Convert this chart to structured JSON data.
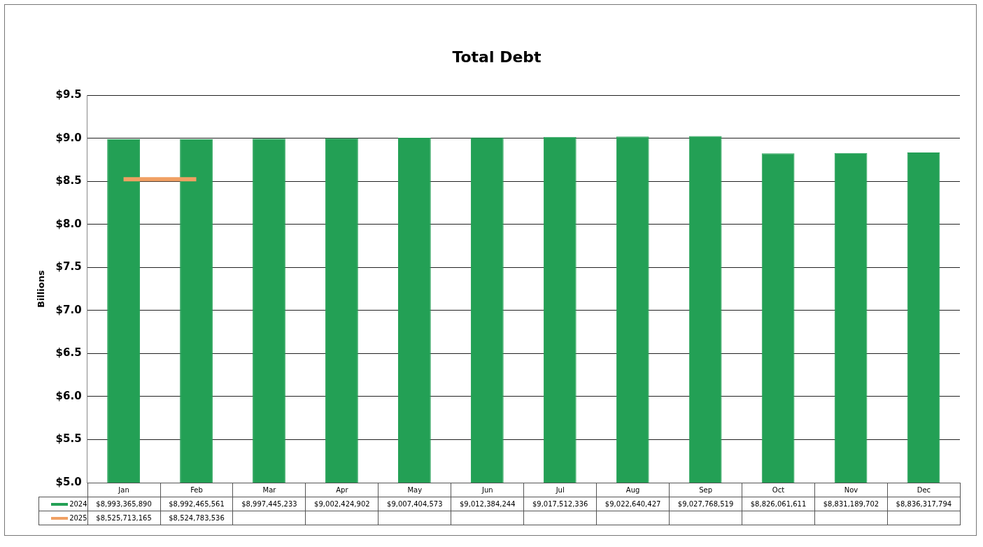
{
  "chart_data": {
    "type": "bar",
    "title": "Total Debt",
    "ylabel": "Billions",
    "categories": [
      "Jan",
      "Feb",
      "Mar",
      "Apr",
      "May",
      "Jun",
      "Jul",
      "Aug",
      "Sep",
      "Oct",
      "Nov",
      "Dec"
    ],
    "series": [
      {
        "name": "2024",
        "color": "#23a055",
        "values": [
          8.99336589,
          8.992465561,
          8.997445233,
          9.002424902,
          9.007404573,
          9.012384244,
          9.017512336,
          9.022640427,
          9.027768519,
          8.826061611,
          8.831189702,
          8.836317794
        ]
      },
      {
        "name": "2025",
        "type": "line",
        "color": "#f0a063",
        "values": [
          8.525713165,
          8.524783536,
          null,
          null,
          null,
          null,
          null,
          null,
          null,
          null,
          null,
          null
        ]
      }
    ],
    "annotations": [
      "$8,993,365,890",
      "$8,992,465,561",
      "$8,997,445,233",
      "$9,002,424,902",
      "$9,007,404,573",
      "$9,012,384,244",
      "$9,017,512,336",
      "$9,022,640,427",
      "$9,027,768,519",
      "$8,826,061,611",
      "$8,831,189,702",
      "$8,836,317,794",
      "$8,525,713,165",
      "$8,524,783,536"
    ],
    "ylim": [
      5,
      9.5
    ],
    "yticks": [
      {
        "value": 5,
        "label": "$5.0"
      },
      {
        "value": 5.5,
        "label": "$5.5"
      },
      {
        "value": 6,
        "label": "$6.0"
      },
      {
        "value": 6.5,
        "label": "$6.5"
      },
      {
        "value": 7,
        "label": "$7.0"
      },
      {
        "value": 7.5,
        "label": "$7.5"
      },
      {
        "value": 8,
        "label": "$8.0"
      },
      {
        "value": 8.5,
        "label": "$8.5"
      },
      {
        "value": 9,
        "label": "$9.0"
      },
      {
        "value": 9.5,
        "label": "$9.5"
      }
    ],
    "grid": "y",
    "legend": "bottom",
    "marker": "none",
    "line_style": "solid"
  }
}
